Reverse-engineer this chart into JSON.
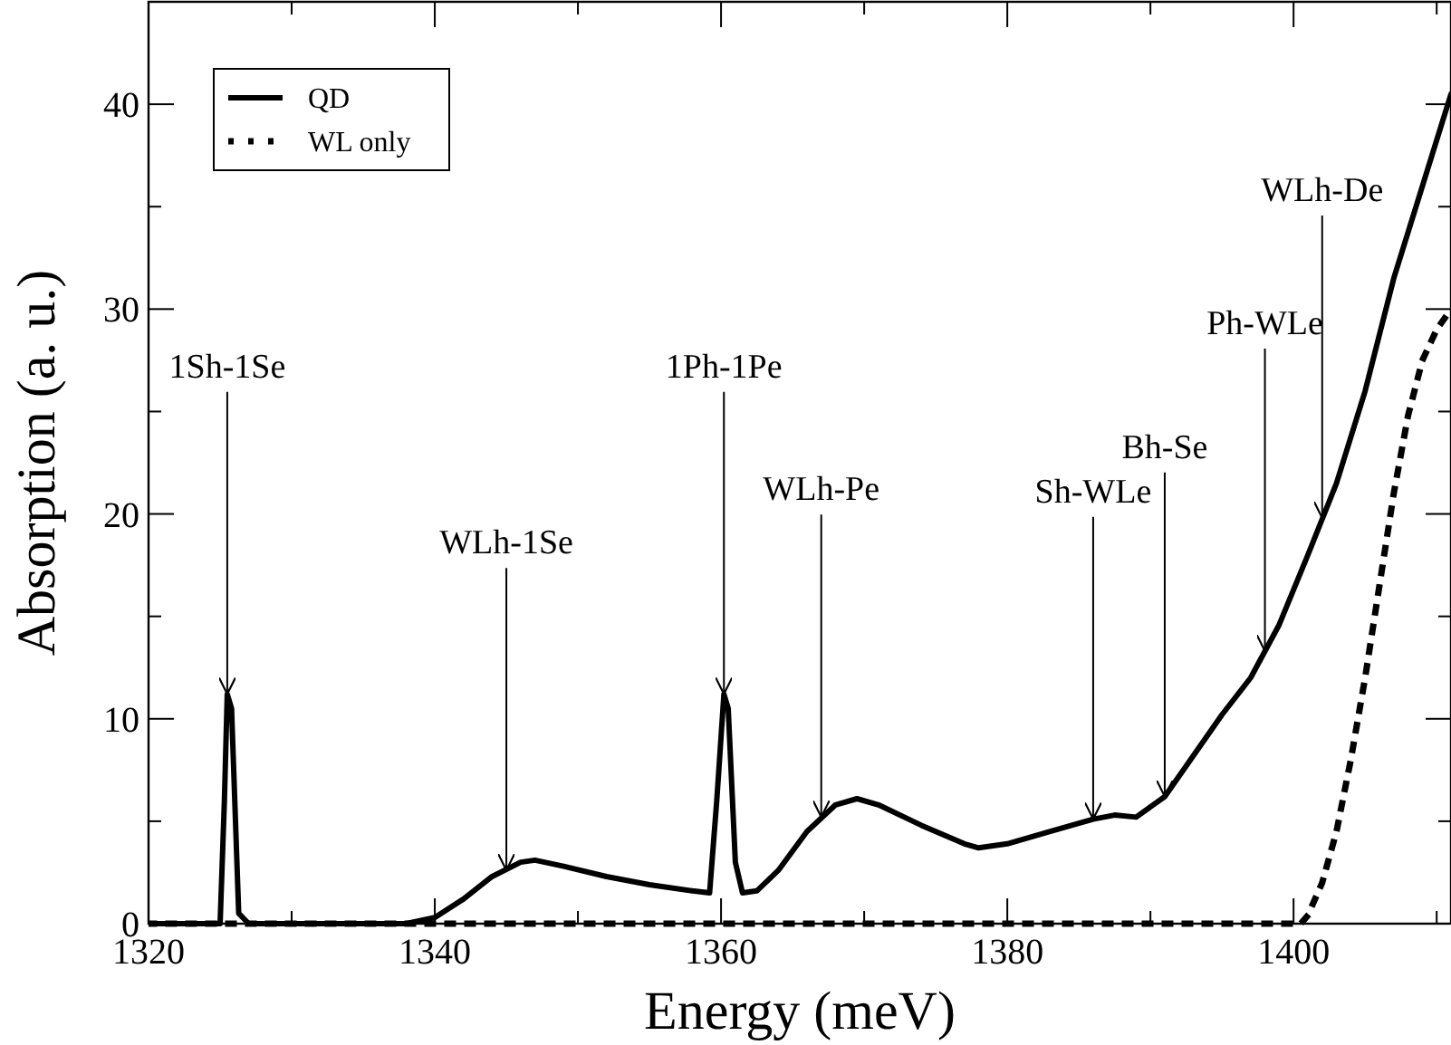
{
  "chart_data": {
    "type": "line",
    "xlabel": "Energy (meV)",
    "ylabel": "Absorption (a. u.)",
    "xlim": [
      1320,
      1411
    ],
    "ylim": [
      0,
      45
    ],
    "xticks": [
      1320,
      {
        "value": 1330,
        "label": null
      },
      1340,
      {
        "value": 1350,
        "label": null
      },
      1360,
      {
        "value": 1370,
        "label": null
      },
      1380,
      {
        "value": 1390,
        "label": null
      },
      1400,
      {
        "value": 1410,
        "label": null
      }
    ],
    "yticks": [
      0,
      {
        "value": 5,
        "label": null
      },
      10,
      {
        "value": 15,
        "label": null
      },
      20,
      {
        "value": 25,
        "label": null
      },
      30,
      {
        "value": 35,
        "label": null
      },
      40
    ],
    "grid": false,
    "legend": "top left",
    "marker": "none",
    "series": [
      {
        "name": "QD",
        "color": "#000000",
        "line_style": "solid",
        "x": [
          1320,
          1325,
          1325.3,
          1325.5,
          1325.8,
          1326.3,
          1327,
          1338,
          1340,
          1342,
          1344,
          1346,
          1347,
          1349,
          1352,
          1355,
          1358,
          1359.2,
          1359.7,
          1360.2,
          1360.5,
          1361,
          1361.5,
          1362.5,
          1364,
          1366,
          1368,
          1369.5,
          1371,
          1374,
          1377,
          1378,
          1380,
          1383,
          1386,
          1387.5,
          1389,
          1391,
          1393,
          1395,
          1397,
          1399,
          1401,
          1403,
          1405,
          1407,
          1409,
          1411
        ],
        "values": [
          0,
          0,
          6,
          11.2,
          10.5,
          0.5,
          0,
          0,
          0.3,
          1.2,
          2.3,
          3,
          3.1,
          2.8,
          2.3,
          1.9,
          1.6,
          1.5,
          6,
          11.2,
          10.5,
          3,
          1.5,
          1.6,
          2.6,
          4.5,
          5.8,
          6.1,
          5.8,
          4.8,
          3.9,
          3.7,
          3.9,
          4.5,
          5.1,
          5.3,
          5.2,
          6.2,
          8.2,
          10.2,
          12,
          14.6,
          18,
          21.5,
          26,
          31.5,
          36,
          40.5
        ]
      },
      {
        "name": "WL only",
        "color": "#000000",
        "line_style": "dotted",
        "x": [
          1320,
          1400,
          1400.5,
          1401,
          1402,
          1403,
          1404,
          1405,
          1406,
          1407,
          1408,
          1409,
          1410,
          1411
        ],
        "values": [
          0,
          0,
          0,
          0.4,
          2,
          4.5,
          8,
          12,
          16.5,
          21,
          24.8,
          27.5,
          29,
          30
        ]
      }
    ],
    "annotations": [
      {
        "text": "1Sh-1Se",
        "x": 1325.5,
        "y": 11.2
      },
      {
        "text": "WLh-1Se",
        "x": 1345,
        "y": 2.6
      },
      {
        "text": "1Ph-1Pe",
        "x": 1360.2,
        "y": 11.2
      },
      {
        "text": "WLh-Pe",
        "x": 1367,
        "y": 5.2
      },
      {
        "text": "Sh-WLe",
        "x": 1386,
        "y": 5.1
      },
      {
        "text": "Bh-Se",
        "x": 1391,
        "y": 6.2
      },
      {
        "text": "Ph-WLe",
        "x": 1398,
        "y": 13.3
      },
      {
        "text": "WLh-De",
        "x": 1402,
        "y": 19.8
      }
    ]
  }
}
